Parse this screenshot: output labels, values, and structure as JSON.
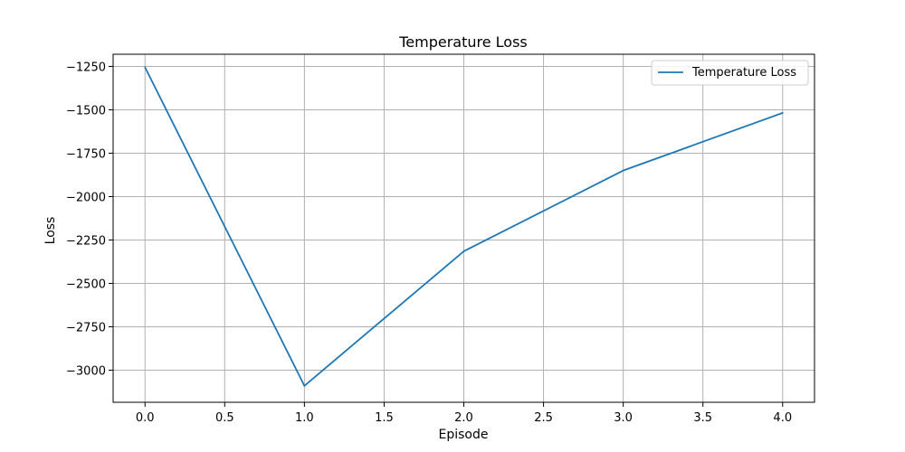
{
  "chart_data": {
    "type": "line",
    "title": "Temperature Loss",
    "xlabel": "Episode",
    "ylabel": "Loss",
    "x": [
      0,
      1,
      2,
      3,
      4
    ],
    "series": [
      {
        "name": "Temperature Loss",
        "values": [
          -1255,
          -3090,
          -2315,
          -1850,
          -1518
        ]
      }
    ],
    "xlim": [
      -0.2,
      4.2
    ],
    "ylim": [
      -3185,
      -1180
    ],
    "xticks": [
      0.0,
      0.5,
      1.0,
      1.5,
      2.0,
      2.5,
      3.0,
      3.5,
      4.0
    ],
    "xtick_labels": [
      "0.0",
      "0.5",
      "1.0",
      "1.5",
      "2.0",
      "2.5",
      "3.0",
      "3.5",
      "4.0"
    ],
    "yticks": [
      -3000,
      -2750,
      -2500,
      -2250,
      -2000,
      -1750,
      -1500,
      -1250
    ],
    "ytick_labels": [
      "−3000",
      "−2750",
      "−2500",
      "−2250",
      "−2000",
      "−1750",
      "−1500",
      "−1250"
    ],
    "grid": true,
    "legend_position": "top-right",
    "colors": {
      "series": "#1f77b4",
      "grid": "#b0b0b0",
      "axis": "#000000"
    }
  }
}
